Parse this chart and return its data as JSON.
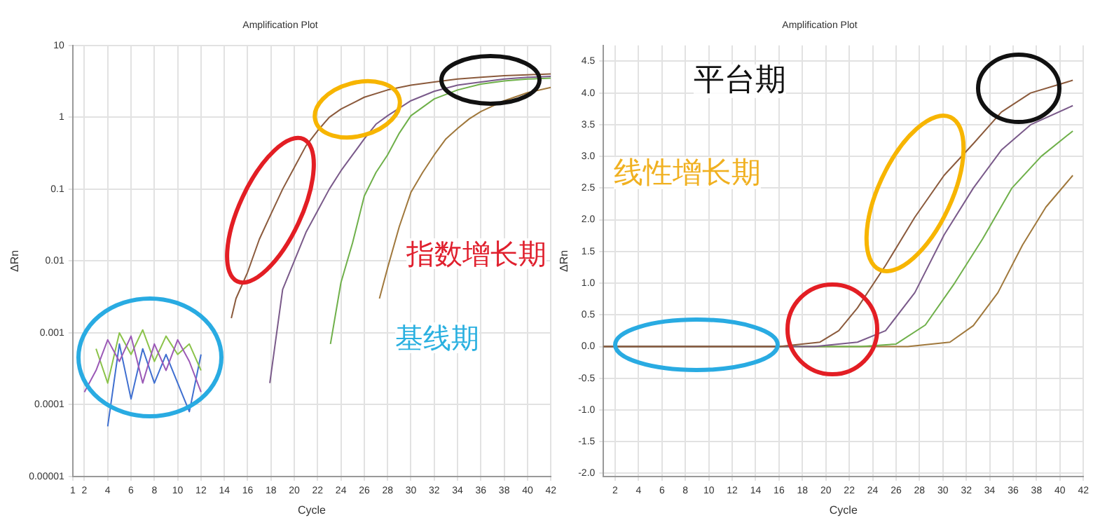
{
  "chart_data": [
    {
      "type": "line",
      "title": "Amplification Plot",
      "xlabel": "Cycle",
      "ylabel": "ΔRn",
      "log": "y",
      "grid": true,
      "legend": false,
      "marker": "none",
      "xlim": [
        1,
        42
      ],
      "xticks": [
        1,
        2,
        4,
        6,
        8,
        10,
        12,
        14,
        16,
        18,
        20,
        22,
        24,
        26,
        28,
        30,
        32,
        34,
        36,
        38,
        40,
        42
      ],
      "ylim": [
        1e-05,
        10
      ],
      "yticks": [
        {
          "value": 1e-05,
          "label": "0.00001"
        },
        0.0001,
        0.001,
        0.01,
        0.1,
        1,
        10
      ],
      "annotations": [
        "指数增长期",
        "基线期"
      ],
      "series": [
        {
          "color": "#8b5a3c",
          "x": [
            14.6,
            15,
            16,
            17,
            18,
            19,
            20,
            21,
            22,
            23,
            24,
            26,
            28,
            30,
            32,
            34,
            36,
            38,
            40,
            42
          ],
          "values": [
            0.0016,
            0.003,
            0.007,
            0.02,
            0.045,
            0.1,
            0.2,
            0.4,
            0.65,
            1.0,
            1.3,
            1.9,
            2.4,
            2.8,
            3.1,
            3.4,
            3.6,
            3.8,
            3.9,
            4.0
          ]
        },
        {
          "color": "#7a5a8a",
          "x": [
            17.9,
            19,
            20,
            21,
            22,
            23,
            24,
            25,
            26,
            27,
            28,
            30,
            32,
            34,
            36,
            38,
            40,
            42
          ],
          "values": [
            0.0002,
            0.004,
            0.01,
            0.025,
            0.05,
            0.1,
            0.18,
            0.3,
            0.5,
            0.8,
            1.05,
            1.7,
            2.3,
            2.8,
            3.1,
            3.4,
            3.6,
            3.7
          ]
        },
        {
          "color": "#6fb04a",
          "x": [
            23.1,
            24,
            25,
            26,
            27,
            28,
            29,
            30,
            32,
            34,
            36,
            38,
            40,
            42
          ],
          "values": [
            0.0007,
            0.005,
            0.018,
            0.08,
            0.17,
            0.3,
            0.6,
            1.05,
            1.8,
            2.4,
            2.9,
            3.2,
            3.4,
            3.5
          ]
        },
        {
          "color": "#a0783c",
          "x": [
            27.3,
            28,
            29,
            30,
            31,
            32,
            33,
            34,
            35,
            36,
            38,
            40,
            42
          ],
          "values": [
            0.003,
            0.008,
            0.03,
            0.09,
            0.17,
            0.3,
            0.5,
            0.7,
            0.95,
            1.2,
            1.7,
            2.2,
            2.6
          ]
        },
        {
          "color": "#9b59b6",
          "x": [
            2,
            3,
            4,
            5,
            6,
            7,
            8,
            9,
            10,
            11,
            12
          ],
          "values": [
            0.00015,
            0.0003,
            0.0008,
            0.0004,
            0.0009,
            0.0002,
            0.0007,
            0.0003,
            0.0008,
            0.0004,
            0.00015
          ]
        },
        {
          "color": "#8bc34a",
          "x": [
            3,
            4,
            5,
            6,
            7,
            8,
            9,
            10,
            11,
            12
          ],
          "values": [
            0.0006,
            0.0002,
            0.001,
            0.0005,
            0.0011,
            0.0004,
            0.0009,
            0.0005,
            0.0007,
            0.0003
          ]
        },
        {
          "color": "#3f6fd0",
          "x": [
            4,
            5,
            6,
            7,
            8,
            9,
            10,
            11,
            12
          ],
          "values": [
            5e-05,
            0.0007,
            0.00012,
            0.0006,
            0.0002,
            0.0005,
            0.0002,
            8e-05,
            0.0005
          ]
        }
      ]
    },
    {
      "type": "line",
      "title": "Amplification Plot",
      "xlabel": "Cycle",
      "ylabel": "ΔRn",
      "grid": true,
      "legend": false,
      "marker": "none",
      "xlim": [
        1,
        42
      ],
      "xticks": [
        2,
        4,
        6,
        8,
        10,
        12,
        14,
        16,
        18,
        20,
        22,
        24,
        26,
        28,
        30,
        32,
        34,
        36,
        38,
        40,
        42
      ],
      "ylim": [
        -2.05,
        4.75
      ],
      "yticks": [
        {
          "value": -2,
          "label": "-2.0"
        },
        -1.5,
        {
          "value": -1,
          "label": "-1.0"
        },
        -0.5,
        {
          "value": 0,
          "label": "0.0"
        },
        0.5,
        {
          "value": 1,
          "label": "1.0"
        },
        1.5,
        {
          "value": 2,
          "label": "2.0"
        },
        2.5,
        {
          "value": 3,
          "label": "3.0"
        },
        3.5,
        {
          "value": 4,
          "label": "4.0"
        },
        4.5
      ],
      "annotations": [
        "平台期",
        "线性增长期"
      ],
      "series": [
        {
          "color": "#8b5a3c",
          "x": [
            1,
            16,
            19.5,
            21.1,
            22.7,
            25.1,
            27.6,
            30.1,
            32.6,
            35,
            37.5,
            41.1
          ],
          "values": [
            0,
            0,
            0.07,
            0.25,
            0.61,
            1.28,
            2.04,
            2.7,
            3.2,
            3.7,
            4.0,
            4.2
          ]
        },
        {
          "color": "#7a5a8a",
          "x": [
            1,
            19,
            22.7,
            25.1,
            27.6,
            30.1,
            32.6,
            35,
            37.5,
            41.1
          ],
          "values": [
            0,
            0,
            0.07,
            0.25,
            0.85,
            1.76,
            2.5,
            3.1,
            3.5,
            3.8
          ]
        },
        {
          "color": "#6fb04a",
          "x": [
            1,
            23,
            26,
            28.5,
            31,
            33.4,
            35.9,
            38.4,
            41.1
          ],
          "values": [
            0,
            0,
            0.04,
            0.34,
            1.0,
            1.7,
            2.5,
            3.0,
            3.4
          ]
        },
        {
          "color": "#a0783c",
          "x": [
            1,
            27,
            30.6,
            32.6,
            34.7,
            36.8,
            38.8,
            41.1
          ],
          "values": [
            0,
            0,
            0.07,
            0.33,
            0.85,
            1.6,
            2.2,
            2.7
          ]
        }
      ]
    }
  ]
}
